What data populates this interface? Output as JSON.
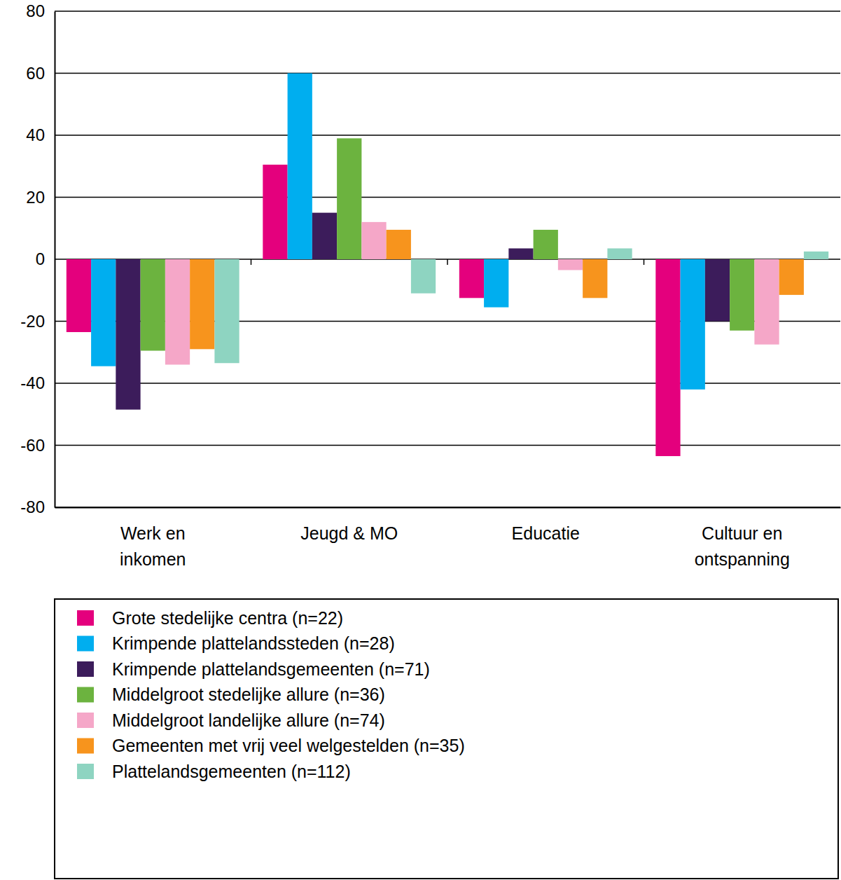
{
  "chart_data": {
    "type": "bar",
    "categories": [
      "Werk en inkomen",
      "Jeugd & MO",
      "Educatie",
      "Cultuur en ontspanning"
    ],
    "series": [
      {
        "name": "Grote stedelijke centra (n=22)",
        "color": "#e4007d",
        "values": [
          -23.5,
          30.5,
          -12.5,
          -63.5
        ]
      },
      {
        "name": "Krimpende plattelandssteden (n=28)",
        "color": "#00aeef",
        "values": [
          -34.5,
          60,
          -15.5,
          -42
        ]
      },
      {
        "name": "Krimpende plattelandsgemeenten (n=71)",
        "color": "#3c1c5b",
        "values": [
          -48.5,
          15,
          3.5,
          -20
        ]
      },
      {
        "name": "Middelgroot stedelijke allure (n=36)",
        "color": "#6cb33f",
        "values": [
          -29.5,
          39,
          9.5,
          -23
        ]
      },
      {
        "name": "Middelgroot landelijke allure (n=74)",
        "color": "#f5a7c8",
        "values": [
          -34,
          12,
          -3.5,
          -27.5
        ]
      },
      {
        "name": "Gemeenten met vrij veel welgestelden (n=35)",
        "color": "#f7941d",
        "values": [
          -29,
          9.5,
          -12.5,
          -11.5
        ]
      },
      {
        "name": "Plattelandsgemeenten (n=112)",
        "color": "#8ed4c1",
        "values": [
          -33.5,
          -11,
          3.5,
          2.5
        ]
      }
    ],
    "ylim": [
      -80,
      80
    ],
    "yticks": [
      -80,
      -60,
      -40,
      -20,
      0,
      20,
      40,
      60,
      80
    ],
    "grid": true,
    "legend": "bottom"
  }
}
